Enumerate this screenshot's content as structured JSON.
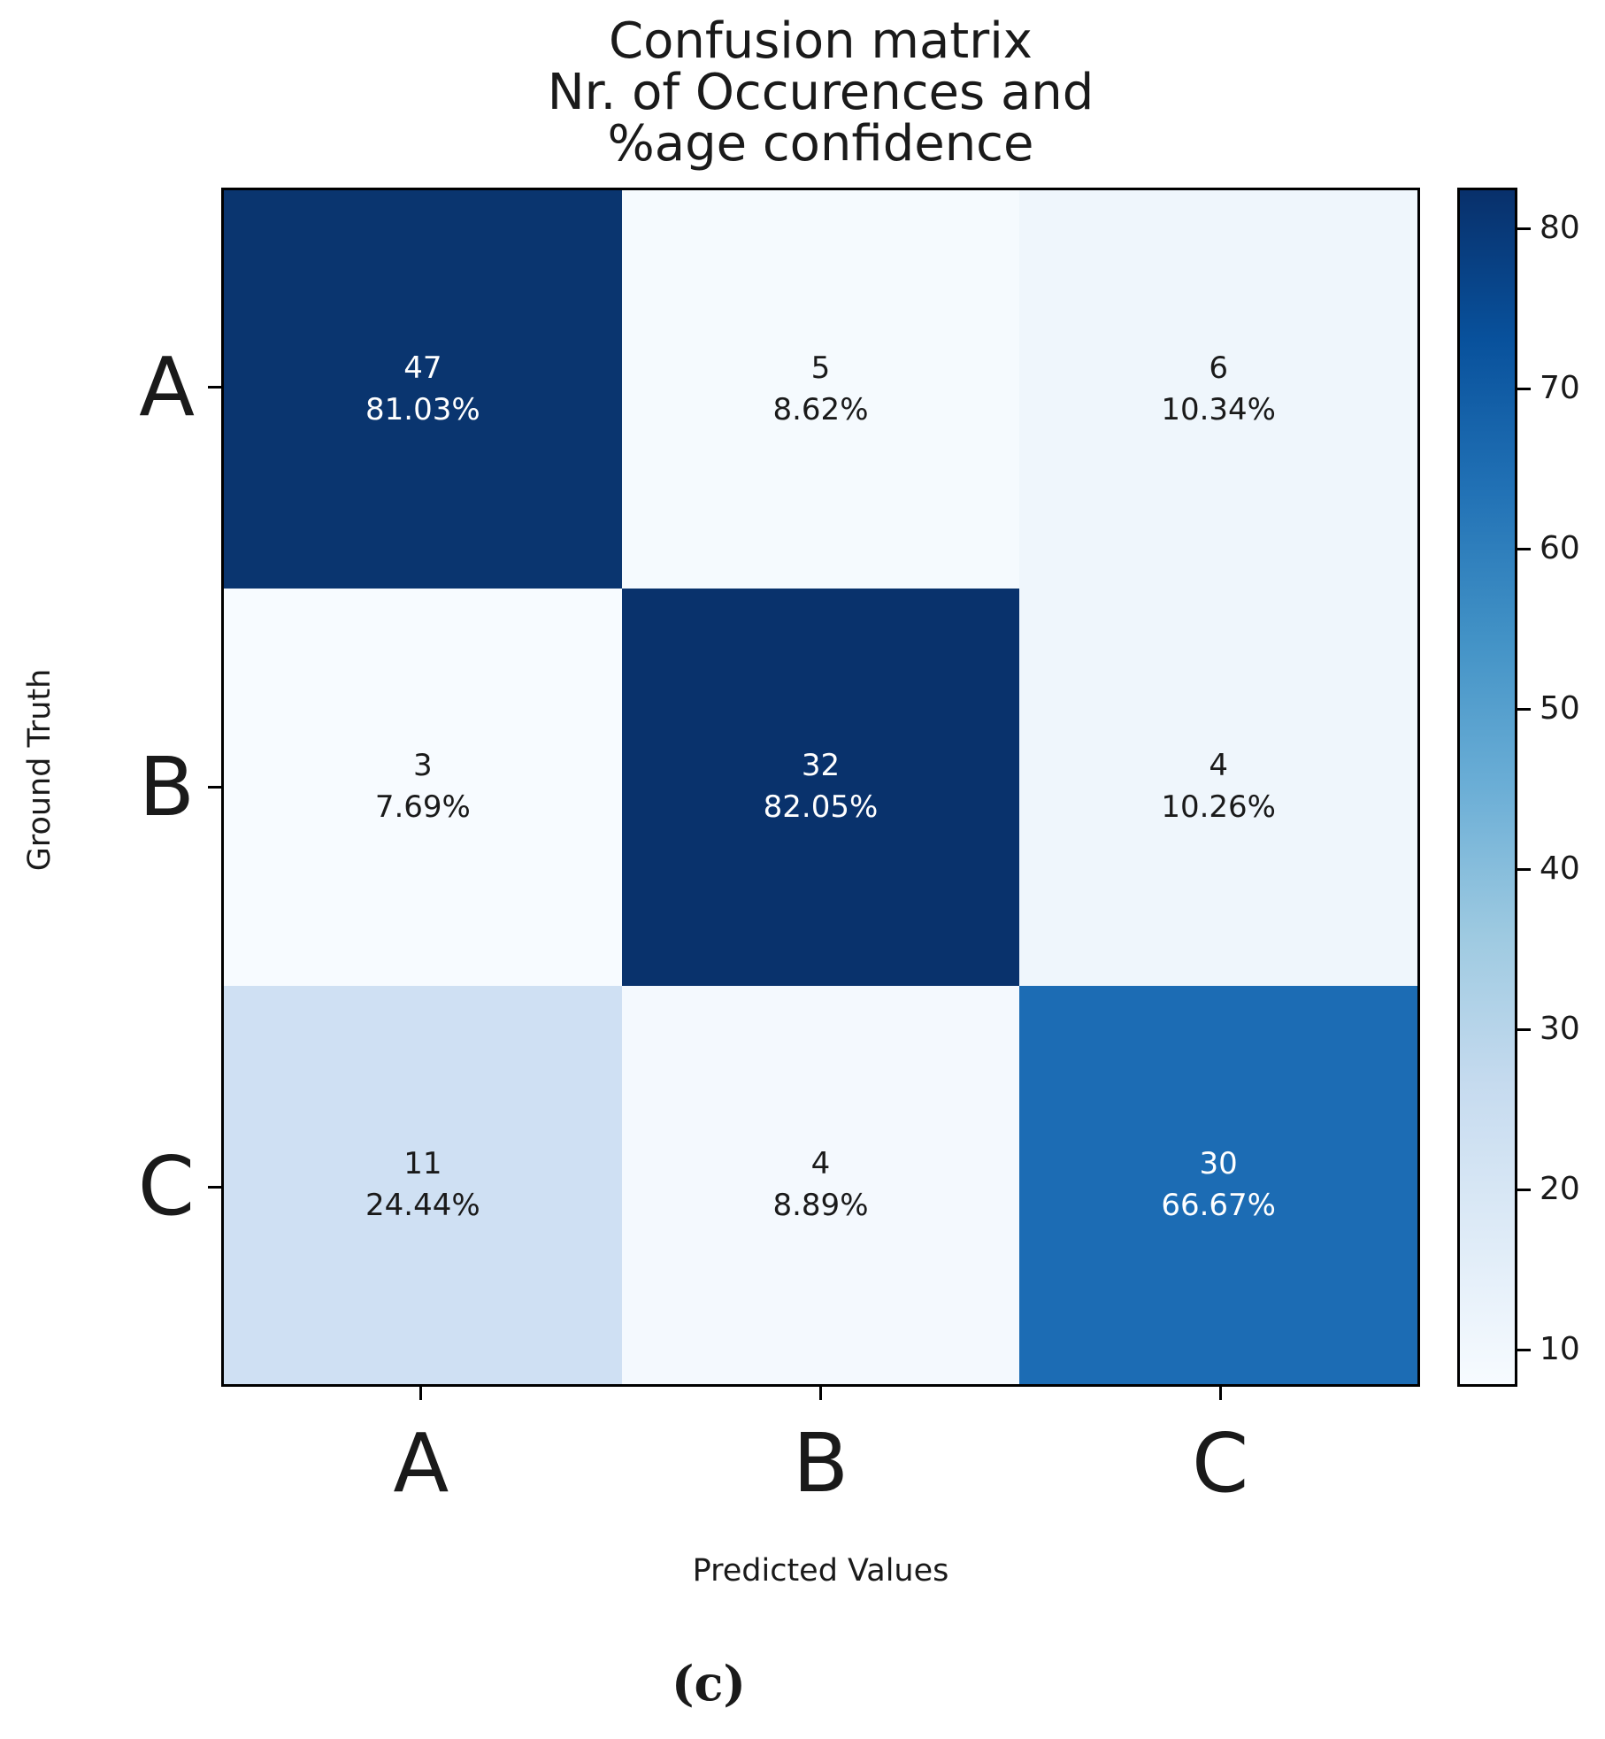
{
  "figure": {
    "title_lines": [
      "Confusion matrix",
      "Nr. of Occurences and",
      "%age confidence"
    ],
    "xlabel": "Predicted Values",
    "ylabel": "Ground Truth",
    "caption": "(c)"
  },
  "chart_data": {
    "type": "heatmap",
    "title": "Confusion matrix\nNr. of Occurences and\n%age confidence",
    "xlabel": "Predicted Values",
    "ylabel": "Ground Truth",
    "x_categories": [
      "A",
      "B",
      "C"
    ],
    "y_categories": [
      "A",
      "B",
      "C"
    ],
    "counts": [
      [
        47,
        5,
        6
      ],
      [
        3,
        32,
        4
      ],
      [
        11,
        4,
        30
      ]
    ],
    "percentages": [
      [
        81.03,
        8.62,
        10.34
      ],
      [
        7.69,
        82.05,
        10.26
      ],
      [
        24.44,
        8.89,
        66.67
      ]
    ],
    "percent_labels": [
      [
        "81.03%",
        "8.62%",
        "10.34%"
      ],
      [
        "7.69%",
        "82.05%",
        "10.26%"
      ],
      [
        "24.44%",
        "8.89%",
        "66.67%"
      ]
    ],
    "colormap": "Blues",
    "cell_colors": [
      [
        "#0a356f",
        "#f5fafe",
        "#eff6fc"
      ],
      [
        "#f7fbff",
        "#09326c",
        "#eff6fc"
      ],
      [
        "#cfe0f3",
        "#f4f9fe",
        "#1c6cb4"
      ]
    ],
    "cell_text_colors": [
      [
        "#ffffff",
        "#1a1a1a",
        "#1a1a1a"
      ],
      [
        "#1a1a1a",
        "#ffffff",
        "#1a1a1a"
      ],
      [
        "#1a1a1a",
        "#1a1a1a",
        "#ffffff"
      ]
    ],
    "colorbar": {
      "ticks": [
        10,
        20,
        30,
        40,
        50,
        60,
        70,
        80
      ],
      "vmin": 7.69,
      "vmax": 82.55,
      "color_low": "#f7fbff",
      "color_high": "#08306b",
      "position": "right"
    },
    "grid": false,
    "legend": false
  }
}
